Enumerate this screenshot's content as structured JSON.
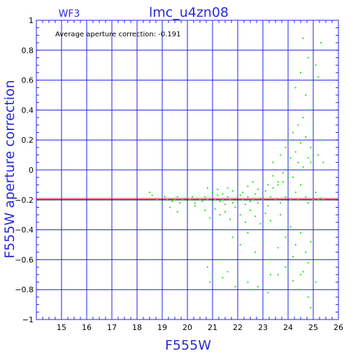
{
  "chart_data": {
    "type": "scatter",
    "title": "lmc_u4zn08",
    "subtitle": "WF3",
    "xlabel": "F555W",
    "ylabel": "F555W aperture correction",
    "annotation": "Average aperture correction:  -0.191",
    "xlim": [
      14,
      26
    ],
    "ylim": [
      -1,
      1
    ],
    "x_ticks": [
      15,
      16,
      17,
      18,
      19,
      20,
      21,
      22,
      23,
      24,
      25,
      26
    ],
    "y_ticks": [
      1,
      0.8,
      0.6,
      0.4,
      0.2,
      0,
      -0.2,
      -0.4,
      -0.6,
      -0.8,
      -1
    ],
    "y_tick_labels": [
      "1",
      "0.8",
      "0.6",
      "0.4",
      "0.2",
      "0",
      "−0.2",
      "−0.4",
      "−0.6",
      "−0.8",
      "−1"
    ],
    "grid": true,
    "reference_lines": [
      {
        "y": -0.191,
        "color": "#e02020"
      },
      {
        "y": -0.2,
        "color": "#000000"
      }
    ],
    "colors": {
      "points": "#22e022",
      "grid": "#2020e0",
      "title": "#2a2ad4"
    },
    "series": [
      {
        "x": [
          18.5,
          18.6,
          18.8,
          19.0,
          19.1,
          19.2,
          19.3,
          19.4,
          19.5,
          19.6,
          19.7,
          19.8,
          19.9,
          20.0,
          20.1,
          20.2,
          20.3,
          20.4,
          20.5,
          20.6,
          20.7,
          20.8,
          20.9,
          21.0,
          21.1,
          21.2,
          21.3,
          21.4,
          21.5,
          21.6,
          21.7,
          21.8,
          21.9,
          22.0,
          22.1,
          22.2,
          22.3,
          22.4,
          22.5,
          22.6,
          22.7,
          22.8,
          22.9,
          23.0,
          23.1,
          23.2,
          23.3,
          23.4,
          23.5,
          23.6,
          23.7,
          23.8,
          23.9,
          24.0,
          24.1,
          24.2,
          24.3,
          24.4,
          24.5,
          24.6,
          24.7,
          24.8,
          24.9,
          25.0,
          25.1,
          25.2,
          25.3,
          25.4,
          19.3,
          19.6,
          20.0,
          20.3,
          20.7,
          20.9,
          21.1,
          21.3,
          21.5,
          21.7,
          21.9,
          22.1,
          22.3,
          22.5,
          22.7,
          22.9,
          23.1,
          23.3,
          23.5,
          23.7,
          23.9,
          24.1,
          24.3,
          24.5,
          24.7,
          24.9,
          25.1,
          20.8,
          21.0,
          21.2,
          21.4,
          21.6,
          21.8,
          22.0,
          22.2,
          22.4,
          22.6,
          22.8,
          23.0,
          23.2,
          23.4,
          23.6,
          23.8,
          24.0,
          24.2,
          24.4,
          24.6,
          24.8,
          25.0,
          21.5,
          21.8,
          22.1,
          22.4,
          22.7,
          23.0,
          23.3,
          23.6,
          23.9,
          24.2,
          24.5,
          24.8,
          25.1,
          23.4,
          23.7,
          23.9,
          24.0,
          24.1,
          24.2,
          24.3,
          24.4,
          24.5,
          24.6,
          24.7,
          24.8,
          24.9,
          25.0,
          25.2,
          25.3,
          25.4,
          24.0,
          24.3,
          24.5,
          24.7,
          24.9,
          25.1,
          25.3,
          24.6,
          24.8,
          25.2,
          20.8,
          21.0,
          21.3,
          21.6,
          22.0,
          22.4,
          22.8,
          23.2,
          23.6,
          24.0,
          24.4,
          24.8,
          20.9,
          21.4,
          21.9,
          22.6,
          23.3,
          24.2,
          24.6,
          25.0,
          24.9
        ],
        "y": [
          -0.15,
          -0.17,
          -0.2,
          -0.22,
          -0.18,
          -0.2,
          -0.19,
          -0.21,
          -0.2,
          -0.18,
          -0.22,
          -0.2,
          -0.19,
          -0.21,
          -0.2,
          -0.18,
          -0.22,
          -0.19,
          -0.2,
          -0.21,
          -0.18,
          -0.2,
          -0.19,
          -0.22,
          -0.2,
          -0.17,
          -0.21,
          -0.2,
          -0.23,
          -0.18,
          -0.2,
          -0.22,
          -0.19,
          -0.21,
          -0.17,
          -0.2,
          -0.23,
          -0.18,
          -0.21,
          -0.2,
          -0.16,
          -0.22,
          -0.19,
          -0.2,
          -0.14,
          -0.24,
          -0.18,
          -0.12,
          -0.2,
          -0.1,
          -0.22,
          -0.08,
          -0.18,
          -0.05,
          -0.2,
          0.0,
          -0.15,
          -0.2,
          -0.1,
          0.02,
          -0.18,
          -0.22,
          0.05,
          -0.2,
          -0.15,
          -0.2,
          -0.19,
          -0.2,
          -0.25,
          -0.28,
          -0.3,
          -0.24,
          -0.27,
          -0.32,
          -0.26,
          -0.3,
          -0.28,
          -0.33,
          -0.25,
          -0.3,
          -0.35,
          -0.27,
          -0.31,
          -0.36,
          -0.29,
          -0.34,
          -0.4,
          -0.3,
          -0.45,
          -0.38,
          -0.5,
          -0.42,
          -0.55,
          -0.48,
          -0.6,
          -0.12,
          -0.15,
          -0.13,
          -0.16,
          -0.12,
          -0.14,
          -0.1,
          -0.15,
          -0.11,
          -0.08,
          -0.13,
          -0.06,
          -0.1,
          -0.04,
          -0.08,
          -0.02,
          0.02,
          -0.05,
          0.05,
          0.0,
          0.08,
          0.1,
          -0.4,
          -0.45,
          -0.5,
          -0.42,
          -0.55,
          -0.48,
          -0.6,
          -0.52,
          -0.65,
          -0.58,
          -0.7,
          -0.62,
          -0.75,
          0.05,
          0.1,
          0.15,
          0.2,
          0.08,
          0.25,
          0.12,
          0.3,
          0.18,
          0.35,
          0.22,
          0.4,
          0.15,
          0.28,
          0.1,
          0.2,
          0.05,
          0.45,
          0.55,
          0.65,
          0.5,
          0.6,
          0.7,
          0.85,
          0.88,
          0.75,
          0.62,
          -0.65,
          -0.7,
          -0.6,
          -0.68,
          -0.72,
          -0.75,
          -0.78,
          -0.82,
          -0.7,
          -0.65,
          -0.8,
          -0.85,
          -0.75,
          -0.72,
          -0.78,
          -0.8,
          -0.7,
          -0.74,
          -0.68,
          -0.88,
          -0.92
        ]
      }
    ]
  }
}
